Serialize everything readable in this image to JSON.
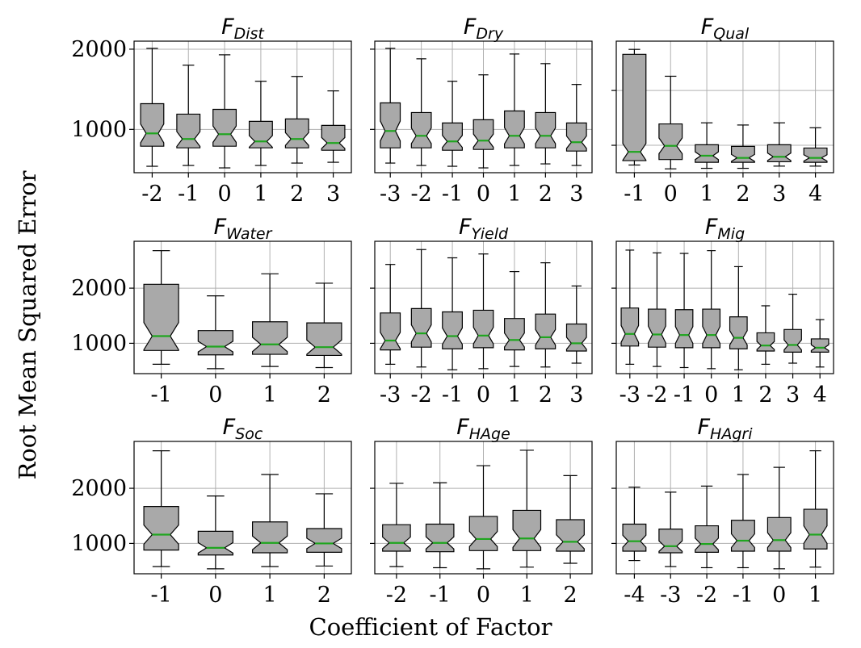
{
  "figure": {
    "ylabel": "Root Mean Squared Error",
    "xlabel": "Coefficient of Factor",
    "box_fill": "#a9a9a9",
    "median_color": "#1fa61f",
    "grid_color": "#b0b0b0"
  },
  "chart_data": [
    {
      "type": "boxplot",
      "title_main": "F",
      "title_sub": "Dist",
      "categories": [
        "-2",
        "-1",
        "0",
        "1",
        "2",
        "3"
      ],
      "ylim": [
        460,
        2100
      ],
      "yticks": [
        1000,
        2000
      ],
      "show_ytick_labels": true,
      "grid": true,
      "series": [
        {
          "name": "",
          "boxes": [
            {
              "whislo": 540,
              "q1": 790,
              "med": 950,
              "q3": 1320,
              "whishi": 2010
            },
            {
              "whislo": 550,
              "q1": 770,
              "med": 880,
              "q3": 1190,
              "whishi": 1800
            },
            {
              "whislo": 520,
              "q1": 790,
              "med": 940,
              "q3": 1250,
              "whishi": 1930
            },
            {
              "whislo": 550,
              "q1": 770,
              "med": 850,
              "q3": 1100,
              "whishi": 1600
            },
            {
              "whislo": 580,
              "q1": 770,
              "med": 880,
              "q3": 1130,
              "whishi": 1660
            },
            {
              "whislo": 590,
              "q1": 740,
              "med": 830,
              "q3": 1050,
              "whishi": 1480
            }
          ]
        }
      ]
    },
    {
      "type": "boxplot",
      "title_main": "F",
      "title_sub": "Dry",
      "categories": [
        "-3",
        "-2",
        "-1",
        "0",
        "1",
        "2",
        "3"
      ],
      "ylim": [
        460,
        2100
      ],
      "yticks": [
        1000,
        2000
      ],
      "show_ytick_labels": false,
      "grid": true,
      "series": [
        {
          "name": "",
          "boxes": [
            {
              "whislo": 580,
              "q1": 770,
              "med": 980,
              "q3": 1330,
              "whishi": 2010
            },
            {
              "whislo": 550,
              "q1": 770,
              "med": 920,
              "q3": 1210,
              "whishi": 1880
            },
            {
              "whislo": 540,
              "q1": 740,
              "med": 850,
              "q3": 1080,
              "whishi": 1600
            },
            {
              "whislo": 520,
              "q1": 750,
              "med": 860,
              "q3": 1120,
              "whishi": 1680
            },
            {
              "whislo": 550,
              "q1": 770,
              "med": 920,
              "q3": 1230,
              "whishi": 1940
            },
            {
              "whislo": 570,
              "q1": 770,
              "med": 920,
              "q3": 1210,
              "whishi": 1820
            },
            {
              "whislo": 550,
              "q1": 730,
              "med": 840,
              "q3": 1080,
              "whishi": 1560
            }
          ]
        }
      ]
    },
    {
      "type": "boxplot",
      "title_main": "F",
      "title_sub": "Qual",
      "categories": [
        "-1",
        "0",
        "1",
        "2",
        "3",
        "4"
      ],
      "ylim": [
        500,
        2900
      ],
      "yticks": [
        1000,
        2000
      ],
      "show_ytick_labels": false,
      "grid": true,
      "series": [
        {
          "name": "",
          "boxes": [
            {
              "whislo": 640,
              "q1": 720,
              "med": 880,
              "q3": 2660,
              "whishi": 2750
            },
            {
              "whislo": 570,
              "q1": 740,
              "med": 990,
              "q3": 1390,
              "whishi": 2260
            },
            {
              "whislo": 580,
              "q1": 690,
              "med": 810,
              "q3": 1010,
              "whishi": 1410
            },
            {
              "whislo": 580,
              "q1": 690,
              "med": 770,
              "q3": 980,
              "whishi": 1370
            },
            {
              "whislo": 620,
              "q1": 700,
              "med": 790,
              "q3": 1010,
              "whishi": 1410
            },
            {
              "whislo": 620,
              "q1": 690,
              "med": 770,
              "q3": 950,
              "whishi": 1320
            }
          ]
        }
      ]
    },
    {
      "type": "boxplot",
      "title_main": "F",
      "title_sub": "Water",
      "categories": [
        "-1",
        "0",
        "1",
        "2"
      ],
      "ylim": [
        450,
        2850
      ],
      "yticks": [
        1000,
        2000
      ],
      "show_ytick_labels": true,
      "grid": true,
      "series": [
        {
          "name": "",
          "boxes": [
            {
              "whislo": 620,
              "q1": 870,
              "med": 1130,
              "q3": 2070,
              "whishi": 2680
            },
            {
              "whislo": 540,
              "q1": 790,
              "med": 940,
              "q3": 1230,
              "whishi": 1860
            },
            {
              "whislo": 580,
              "q1": 800,
              "med": 980,
              "q3": 1390,
              "whishi": 2260
            },
            {
              "whislo": 560,
              "q1": 780,
              "med": 930,
              "q3": 1370,
              "whishi": 2090
            }
          ]
        }
      ]
    },
    {
      "type": "boxplot",
      "title_main": "F",
      "title_sub": "Yield",
      "categories": [
        "-3",
        "-2",
        "-1",
        "0",
        "1",
        "2",
        "3"
      ],
      "ylim": [
        450,
        2850
      ],
      "yticks": [
        1000,
        2000
      ],
      "show_ytick_labels": false,
      "grid": true,
      "series": [
        {
          "name": "",
          "boxes": [
            {
              "whislo": 620,
              "q1": 880,
              "med": 1050,
              "q3": 1550,
              "whishi": 2430
            },
            {
              "whislo": 570,
              "q1": 930,
              "med": 1180,
              "q3": 1630,
              "whishi": 2700
            },
            {
              "whislo": 520,
              "q1": 900,
              "med": 1130,
              "q3": 1570,
              "whishi": 2550
            },
            {
              "whislo": 540,
              "q1": 920,
              "med": 1140,
              "q3": 1600,
              "whishi": 2620
            },
            {
              "whislo": 580,
              "q1": 880,
              "med": 1060,
              "q3": 1450,
              "whishi": 2300
            },
            {
              "whislo": 570,
              "q1": 900,
              "med": 1110,
              "q3": 1530,
              "whishi": 2460
            },
            {
              "whislo": 640,
              "q1": 860,
              "med": 1000,
              "q3": 1350,
              "whishi": 2040
            }
          ]
        }
      ]
    },
    {
      "type": "boxplot",
      "title_main": "F",
      "title_sub": "Mig",
      "categories": [
        "-3",
        "-2",
        "-1",
        "0",
        "1",
        "2",
        "3",
        "4"
      ],
      "ylim": [
        450,
        2850
      ],
      "yticks": [
        1000,
        2000
      ],
      "show_ytick_labels": false,
      "grid": true,
      "series": [
        {
          "name": "",
          "boxes": [
            {
              "whislo": 620,
              "q1": 950,
              "med": 1170,
              "q3": 1640,
              "whishi": 2690
            },
            {
              "whislo": 580,
              "q1": 930,
              "med": 1160,
              "q3": 1620,
              "whishi": 2640
            },
            {
              "whislo": 560,
              "q1": 920,
              "med": 1150,
              "q3": 1610,
              "whishi": 2630
            },
            {
              "whislo": 540,
              "q1": 920,
              "med": 1150,
              "q3": 1620,
              "whishi": 2680
            },
            {
              "whislo": 520,
              "q1": 900,
              "med": 1100,
              "q3": 1480,
              "whishi": 2390
            },
            {
              "whislo": 620,
              "q1": 860,
              "med": 960,
              "q3": 1190,
              "whishi": 1680
            },
            {
              "whislo": 640,
              "q1": 840,
              "med": 970,
              "q3": 1250,
              "whishi": 1890
            },
            {
              "whislo": 570,
              "q1": 840,
              "med": 920,
              "q3": 1080,
              "whishi": 1430
            }
          ]
        }
      ]
    },
    {
      "type": "boxplot",
      "title_main": "F",
      "title_sub": "Soc",
      "categories": [
        "-1",
        "0",
        "1",
        "2"
      ],
      "ylim": [
        450,
        2850
      ],
      "yticks": [
        1000,
        2000
      ],
      "show_ytick_labels": true,
      "grid": true,
      "series": [
        {
          "name": "",
          "boxes": [
            {
              "whislo": 580,
              "q1": 880,
              "med": 1160,
              "q3": 1670,
              "whishi": 2680
            },
            {
              "whislo": 540,
              "q1": 790,
              "med": 920,
              "q3": 1220,
              "whishi": 1860
            },
            {
              "whislo": 580,
              "q1": 830,
              "med": 1010,
              "q3": 1390,
              "whishi": 2250
            },
            {
              "whislo": 590,
              "q1": 840,
              "med": 1000,
              "q3": 1270,
              "whishi": 1900
            }
          ]
        }
      ]
    },
    {
      "type": "boxplot",
      "title_main": "F",
      "title_sub": "HAge",
      "categories": [
        "-2",
        "-1",
        "0",
        "1",
        "2"
      ],
      "ylim": [
        450,
        2850
      ],
      "yticks": [
        1000,
        2000
      ],
      "show_ytick_labels": false,
      "grid": true,
      "series": [
        {
          "name": "",
          "boxes": [
            {
              "whislo": 580,
              "q1": 860,
              "med": 1010,
              "q3": 1340,
              "whishi": 2090
            },
            {
              "whislo": 560,
              "q1": 850,
              "med": 1010,
              "q3": 1350,
              "whishi": 2100
            },
            {
              "whislo": 540,
              "q1": 870,
              "med": 1080,
              "q3": 1490,
              "whishi": 2410
            },
            {
              "whislo": 570,
              "q1": 870,
              "med": 1090,
              "q3": 1600,
              "whishi": 2690
            },
            {
              "whislo": 640,
              "q1": 860,
              "med": 1030,
              "q3": 1430,
              "whishi": 2230
            }
          ]
        }
      ]
    },
    {
      "type": "boxplot",
      "title_main": "F",
      "title_sub": "HAgri",
      "categories": [
        "-4",
        "-3",
        "-2",
        "-1",
        "0",
        "1"
      ],
      "ylim": [
        450,
        2850
      ],
      "yticks": [
        1000,
        2000
      ],
      "show_ytick_labels": false,
      "grid": true,
      "series": [
        {
          "name": "",
          "boxes": [
            {
              "whislo": 690,
              "q1": 860,
              "med": 1040,
              "q3": 1350,
              "whishi": 2020
            },
            {
              "whislo": 580,
              "q1": 830,
              "med": 950,
              "q3": 1260,
              "whishi": 1930
            },
            {
              "whislo": 560,
              "q1": 840,
              "med": 990,
              "q3": 1320,
              "whishi": 2040
            },
            {
              "whislo": 560,
              "q1": 860,
              "med": 1050,
              "q3": 1420,
              "whishi": 2250
            },
            {
              "whislo": 540,
              "q1": 860,
              "med": 1060,
              "q3": 1470,
              "whishi": 2380
            },
            {
              "whislo": 570,
              "q1": 900,
              "med": 1160,
              "q3": 1620,
              "whishi": 2680
            }
          ]
        }
      ]
    }
  ]
}
